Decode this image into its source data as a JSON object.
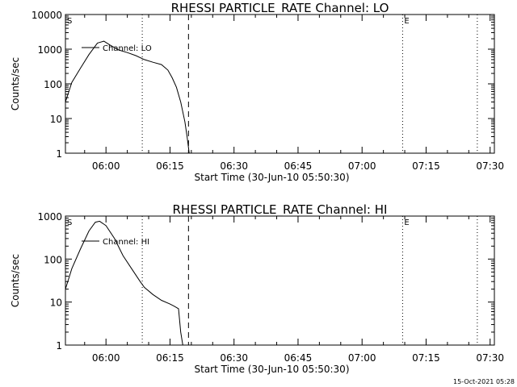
{
  "footer_timestamp": "15-Oct-2021 05:28",
  "chart_data": [
    {
      "type": "line",
      "title": "RHESSI PARTICLE_RATE Channel: LO",
      "xlabel": "Start Time (30-Jun-10 05:50:30)",
      "ylabel": "Counts/sec",
      "yscale": "log",
      "xlim": [
        "05:50:30",
        "07:31:00"
      ],
      "ylim": [
        1,
        10000
      ],
      "x_ticks": [
        "06:00",
        "06:15",
        "06:30",
        "06:45",
        "07:00",
        "07:15",
        "07:30"
      ],
      "y_ticks": [
        "1",
        "10",
        "100",
        "1000",
        "10000"
      ],
      "legend_label": "Channel: LO",
      "marker_left": "S",
      "marker_right": "E",
      "dotted_lines": [
        "06:08:30",
        "07:09:30",
        "07:27:00"
      ],
      "dashed_lines": [
        "06:19:20"
      ],
      "series": [
        {
          "x": [
            "05:50:30",
            "05:52:00",
            "05:54:00",
            "05:56:00",
            "05:58:00",
            "05:59:30",
            "06:01:00",
            "06:03:00",
            "06:05:00",
            "06:07:00",
            "06:09:00",
            "06:11:00",
            "06:13:00",
            "06:14:30",
            "06:15:30",
            "06:16:30",
            "06:17:30",
            "06:18:30",
            "06:19:00",
            "06:19:30"
          ],
          "y": [
            30,
            110,
            280,
            700,
            1500,
            1700,
            1300,
            950,
            800,
            650,
            500,
            420,
            360,
            250,
            150,
            80,
            30,
            8,
            3,
            1
          ]
        }
      ]
    },
    {
      "type": "line",
      "title": "RHESSI PARTICLE_RATE Channel: HI",
      "xlabel": "Start Time (30-Jun-10 05:50:30)",
      "ylabel": "Counts/sec",
      "yscale": "log",
      "xlim": [
        "05:50:30",
        "07:31:00"
      ],
      "ylim": [
        1,
        1000
      ],
      "x_ticks": [
        "06:00",
        "06:15",
        "06:30",
        "06:45",
        "07:00",
        "07:15",
        "07:30"
      ],
      "y_ticks": [
        "1",
        "10",
        "100",
        "1000"
      ],
      "legend_label": "Channel: HI",
      "marker_left": "S",
      "marker_right": "E",
      "dotted_lines": [
        "06:08:30",
        "07:09:30",
        "07:27:00"
      ],
      "dashed_lines": [
        "06:19:20"
      ],
      "series": [
        {
          "x": [
            "05:50:30",
            "05:52:00",
            "05:54:00",
            "05:56:00",
            "05:57:30",
            "05:58:30",
            "06:00:00",
            "06:02:00",
            "06:04:00",
            "06:06:00",
            "06:08:00",
            "06:09:00",
            "06:11:00",
            "06:13:00",
            "06:15:00",
            "06:16:00",
            "06:17:00",
            "06:17:30",
            "06:18:00"
          ],
          "y": [
            20,
            60,
            170,
            450,
            720,
            760,
            600,
            300,
            120,
            60,
            30,
            22,
            15,
            11,
            9,
            8,
            7,
            2,
            1
          ]
        }
      ]
    }
  ]
}
